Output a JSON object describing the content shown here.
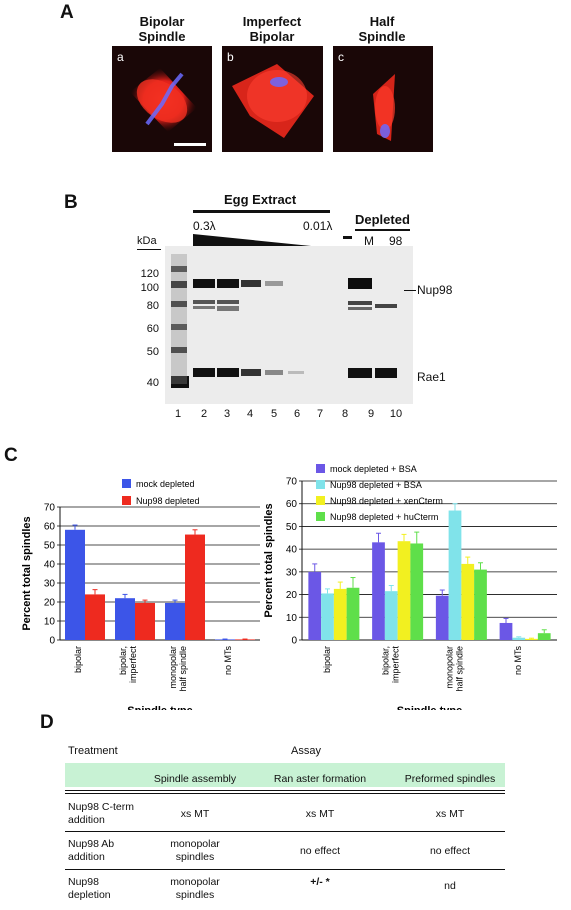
{
  "panels": {
    "a": "A",
    "b": "B",
    "c": "C",
    "d": "D"
  },
  "panelA": {
    "images": [
      {
        "title_line1": "Bipolar",
        "title_line2": "Spindle",
        "sub": "a"
      },
      {
        "title_line1": "Imperfect",
        "title_line2": "Bipolar",
        "sub": "b"
      },
      {
        "title_line1": "Half",
        "title_line2": "Spindle",
        "sub": "c"
      }
    ]
  },
  "panelB": {
    "egg_extract": "Egg Extract",
    "conc_high": "0.3λ",
    "conc_low": "0.01λ",
    "depleted": "Depleted",
    "dash": "–",
    "dep_m": "M",
    "dep_98": "98",
    "kda": "kDa",
    "markers": [
      "120",
      "100",
      "80",
      "60",
      "50",
      "40"
    ],
    "band_nup98": "Nup98",
    "band_rae1": "Rae1",
    "lanes": [
      "1",
      "2",
      "3",
      "4",
      "5",
      "6",
      "7",
      "8",
      "9",
      "10"
    ]
  },
  "chart_data": [
    {
      "type": "bar",
      "ylabel": "Percent total spindles",
      "xlabel": "Spindle type",
      "ylim": [
        0,
        70
      ],
      "yticks": [
        0,
        10,
        20,
        30,
        40,
        50,
        60,
        70
      ],
      "categories": [
        "bipolar",
        "bipolar, imperfect",
        "monopolar half spindle",
        "no MTs"
      ],
      "category_lines": [
        [
          "bipolar"
        ],
        [
          "bipolar,",
          "imperfect"
        ],
        [
          "monopolar",
          "half spindle"
        ],
        [
          "no MTs"
        ]
      ],
      "legend": "top-right",
      "series": [
        {
          "name": "mock depleted",
          "color": "#3c55e8",
          "values": [
            58,
            22,
            19.5,
            0.3
          ],
          "errors": [
            2.5,
            2,
            1.5,
            0.2
          ]
        },
        {
          "name": "Nup98 depleted",
          "color": "#ee2a1f",
          "values": [
            24,
            19.5,
            55.5,
            0.3
          ],
          "errors": [
            2.5,
            1.5,
            2.5,
            0.2
          ]
        }
      ]
    },
    {
      "type": "bar",
      "ylabel": "Percent total spindles",
      "xlabel": "Spindle type",
      "ylim": [
        0,
        70
      ],
      "yticks": [
        0,
        10,
        20,
        30,
        40,
        50,
        60,
        70
      ],
      "categories": [
        "bipolar",
        "bipolar, imperfect",
        "monopolar half spindle",
        "no MTs"
      ],
      "category_lines": [
        [
          "bipolar"
        ],
        [
          "bipolar,",
          "imperfect"
        ],
        [
          "monopolar",
          "half spindle"
        ],
        [
          "no MTs"
        ]
      ],
      "legend": "top-right",
      "series": [
        {
          "name": "mock depleted + BSA",
          "color": "#6b57e6",
          "values": [
            30,
            43,
            19.5,
            7.5
          ],
          "errors": [
            3.5,
            4,
            2.5,
            2
          ]
        },
        {
          "name": "Nup98 depleted + BSA",
          "color": "#80e3ea",
          "values": [
            20.5,
            21.5,
            57,
            1
          ],
          "errors": [
            2,
            2.5,
            3,
            0.4
          ]
        },
        {
          "name": "Nup98 depleted + xenCterm",
          "color": "#f2f020",
          "values": [
            22.5,
            43.5,
            33.5,
            0.5
          ],
          "errors": [
            3,
            3,
            3,
            0.3
          ]
        },
        {
          "name": "Nup98 depleted + huCterm",
          "color": "#5fdf4a",
          "values": [
            23,
            42.5,
            31,
            3
          ],
          "errors": [
            4.5,
            5,
            3,
            1.5
          ]
        }
      ]
    }
  ],
  "panelD": {
    "treatment": "Treatment",
    "assay": "Assay",
    "headers": [
      "Spindle assembly",
      "Ran aster formation",
      "Preformed spindles"
    ],
    "rows": [
      {
        "treatment_l1": "Nup98 C-term",
        "treatment_l2": "addition",
        "c1_l1": "xs MT",
        "c1_l2": "",
        "c2": "xs MT",
        "c3": "xs MT"
      },
      {
        "treatment_l1": "Nup98 Ab",
        "treatment_l2": "addition",
        "c1_l1": "monopolar",
        "c1_l2": "spindles",
        "c2": "no effect",
        "c3": "no effect"
      },
      {
        "treatment_l1": "Nup98",
        "treatment_l2": "depletion",
        "c1_l1": "monopolar",
        "c1_l2": "spindles",
        "c2": "+/-  *",
        "c3": "nd"
      }
    ]
  }
}
